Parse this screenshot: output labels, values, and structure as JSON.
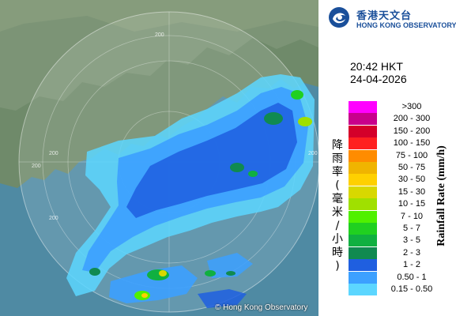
{
  "brand": {
    "name_zh": "香港天文台",
    "name_en": "HONG KONG OBSERVATORY",
    "logo_colors": {
      "primary": "#1a4f9a",
      "accent": "#0f7bc0"
    }
  },
  "timestamp": {
    "time": "20:42 HKT",
    "date": "24-04-2026"
  },
  "credit": {
    "text": "© Hong Kong Observatory"
  },
  "range_ring_labels": [
    "200",
    "200",
    "200",
    "200",
    "200"
  ],
  "legend": {
    "title_zh": "降雨率(毫米/小時)",
    "title_en": "Rainfall Rate (mm/h)",
    "items": [
      {
        "label": ">300",
        "color": "#ff00ff"
      },
      {
        "label": "200 - 300",
        "color": "#c8008c"
      },
      {
        "label": "150 - 200",
        "color": "#d4002a"
      },
      {
        "label": "100 - 150",
        "color": "#ff2020"
      },
      {
        "label": "75 - 100",
        "color": "#ff8c00"
      },
      {
        "label": "50 - 75",
        "color": "#f0b400"
      },
      {
        "label": "30 - 50",
        "color": "#ffd000"
      },
      {
        "label": "15 - 30",
        "color": "#d8d800"
      },
      {
        "label": "10 - 15",
        "color": "#a0e000"
      },
      {
        "label": "7 - 10",
        "color": "#50f000"
      },
      {
        "label": "5 - 7",
        "color": "#20d020"
      },
      {
        "label": "3 - 5",
        "color": "#10b040"
      },
      {
        "label": "2 - 3",
        "color": "#108a50"
      },
      {
        "label": "1 - 2",
        "color": "#1f5fe0"
      },
      {
        "label": "0.50 - 1",
        "color": "#3ca0ff"
      },
      {
        "label": "0.15 - 0.50",
        "color": "#5cd6ff"
      }
    ]
  }
}
